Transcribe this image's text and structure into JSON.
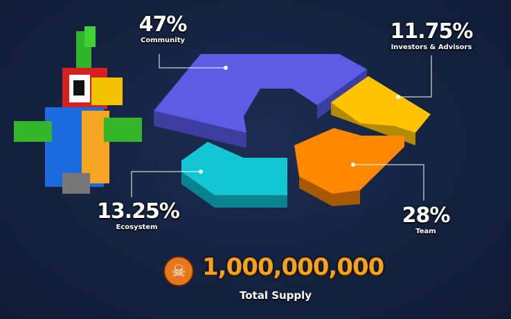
{
  "chart_data": {
    "type": "pie",
    "style": "3d-donut",
    "slices": [
      {
        "label": "Community",
        "value": 47,
        "display": "47%",
        "color": "#5b5de6"
      },
      {
        "label": "Investors & Advisors",
        "value": 11.75,
        "display": "11.75%",
        "color": "#ffc400"
      },
      {
        "label": "Team",
        "value": 28,
        "display": "28%",
        "color": "#ff8800"
      },
      {
        "label": "Ecosystem",
        "value": 13.25,
        "display": "13.25%",
        "color": "#12c6d6"
      }
    ]
  },
  "total": {
    "value": "1,000,000,000",
    "label": "Total Supply",
    "icon": "skull-icon"
  },
  "background": "#13213e"
}
